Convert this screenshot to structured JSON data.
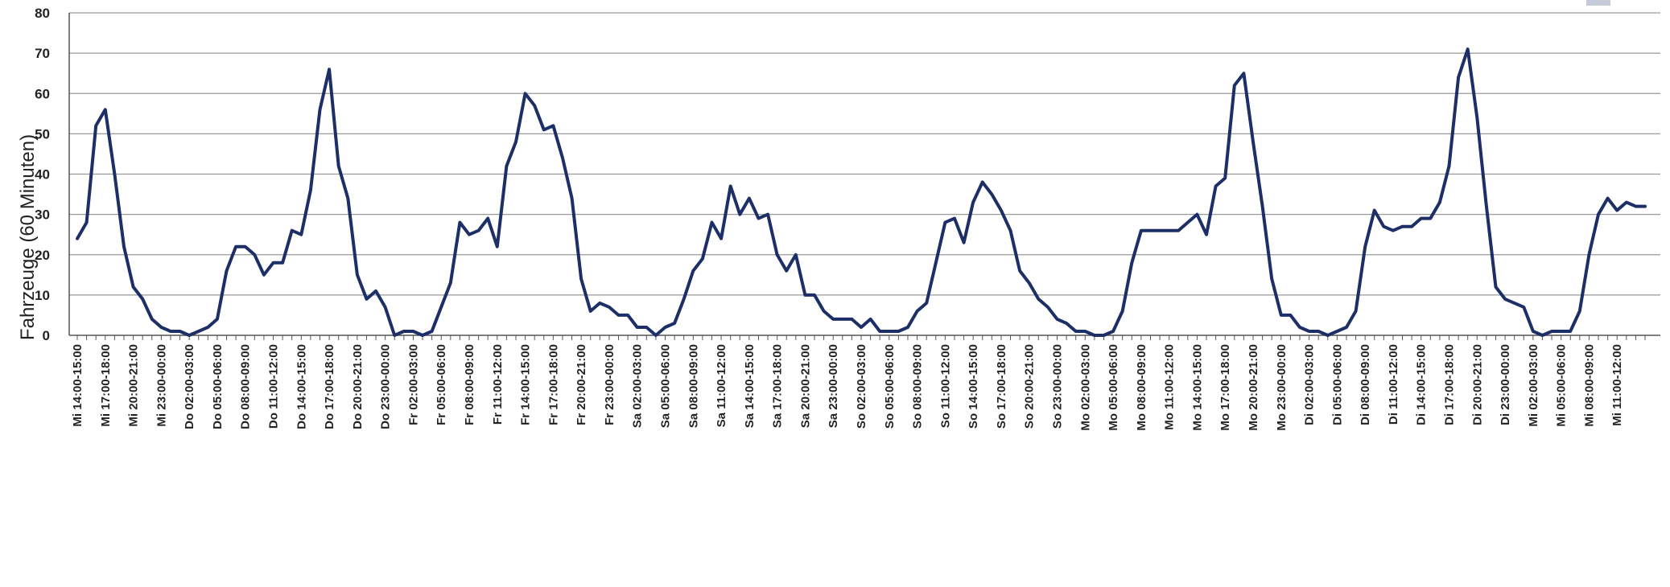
{
  "chart_data": {
    "type": "line",
    "title": "",
    "xlabel": "",
    "ylabel": "Fahrzeuge (60 Minuten)",
    "ylim": [
      0,
      80
    ],
    "yticks": [
      0,
      10,
      20,
      30,
      40,
      50,
      60,
      70,
      80
    ],
    "grid": true,
    "legend_position": "top-right",
    "colors": {
      "series": "#1c2f66",
      "grid": "#9a9a9a",
      "axis": "#555555"
    },
    "x_tick_labels": [
      "Mi 14:00-15:00",
      "Mi 17:00-18:00",
      "Mi 20:00-21:00",
      "Mi 23:00-00:00",
      "Do 02:00-03:00",
      "Do 05:00-06:00",
      "Do 08:00-09:00",
      "Do 11:00-12:00",
      "Do 14:00-15:00",
      "Do 17:00-18:00",
      "Do 20:00-21:00",
      "Do 23:00-00:00",
      "Fr 02:00-03:00",
      "Fr 05:00-06:00",
      "Fr 08:00-09:00",
      "Fr 11:00-12:00",
      "Fr 14:00-15:00",
      "Fr 17:00-18:00",
      "Fr 20:00-21:00",
      "Fr 23:00-00:00",
      "Sa 02:00-03:00",
      "Sa 05:00-06:00",
      "Sa 08:00-09:00",
      "Sa 11:00-12:00",
      "Sa 14:00-15:00",
      "Sa 17:00-18:00",
      "Sa 20:00-21:00",
      "Sa 23:00-00:00",
      "So 02:00-03:00",
      "So 05:00-06:00",
      "So 08:00-09:00",
      "So 11:00-12:00",
      "So 14:00-15:00",
      "So 17:00-18:00",
      "So 20:00-21:00",
      "So 23:00-00:00",
      "Mo 02:00-03:00",
      "Mo 05:00-06:00",
      "Mo 08:00-09:00",
      "Mo 11:00-12:00",
      "Mo 14:00-15:00",
      "Mo 17:00-18:00",
      "Mo 20:00-21:00",
      "Mo 23:00-00:00",
      "Di 02:00-03:00",
      "Di 05:00-06:00",
      "Di 08:00-09:00",
      "Di 11:00-12:00",
      "Di 14:00-15:00",
      "Di 17:00-18:00",
      "Di 20:00-21:00",
      "Di 23:00-00:00",
      "Mi 02:00-03:00",
      "Mi 05:00-06:00",
      "Mi 08:00-09:00",
      "Mi 11:00-12:00"
    ],
    "series": [
      {
        "name": "",
        "values": [
          24,
          28,
          52,
          56,
          40,
          22,
          12,
          9,
          4,
          2,
          1,
          1,
          0,
          1,
          2,
          4,
          16,
          22,
          22,
          20,
          15,
          18,
          18,
          26,
          25,
          36,
          56,
          66,
          42,
          34,
          15,
          9,
          11,
          7,
          0,
          1,
          1,
          0,
          1,
          7,
          13,
          28,
          25,
          26,
          29,
          22,
          42,
          48,
          60,
          57,
          51,
          52,
          44,
          34,
          14,
          6,
          8,
          7,
          5,
          5,
          2,
          2,
          0,
          2,
          3,
          9,
          16,
          19,
          28,
          24,
          37,
          30,
          34,
          29,
          30,
          20,
          16,
          20,
          10,
          10,
          6,
          4,
          4,
          4,
          2,
          4,
          1,
          1,
          1,
          2,
          6,
          8,
          18,
          28,
          29,
          23,
          33,
          38,
          35,
          31,
          26,
          16,
          13,
          9,
          7,
          4,
          3,
          1,
          1,
          0,
          0,
          1,
          6,
          18,
          26,
          26,
          26,
          26,
          26,
          28,
          30,
          25,
          37,
          39,
          62,
          65,
          48,
          32,
          14,
          5,
          5,
          2,
          1,
          1,
          0,
          1,
          2,
          6,
          22,
          31,
          27,
          26,
          27,
          27,
          29,
          29,
          33,
          42,
          64,
          71,
          54,
          32,
          12,
          9,
          8,
          7,
          1,
          0,
          1,
          1,
          1,
          6,
          20,
          30,
          34,
          31,
          33,
          32,
          32
        ]
      }
    ]
  }
}
